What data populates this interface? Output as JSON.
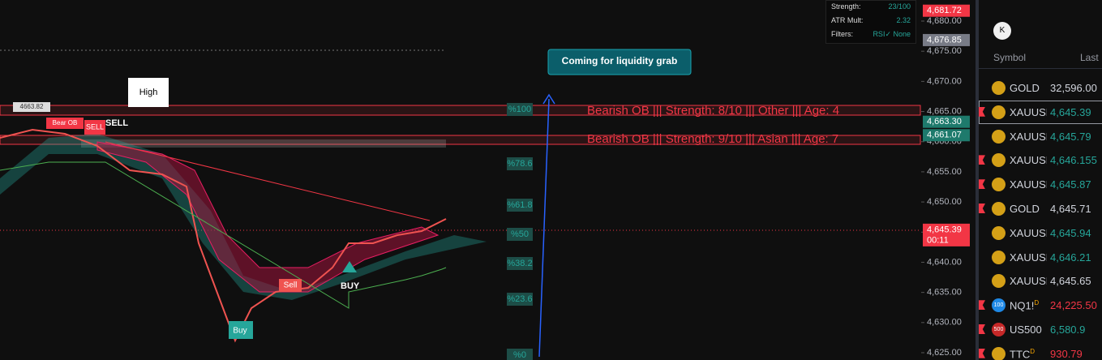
{
  "indicator_panel": {
    "rows": [
      [
        "Strength:",
        "23/100"
      ],
      [
        "ATR Mult:",
        "2.32"
      ],
      [
        "Filters:",
        "RSI✓ None"
      ]
    ]
  },
  "price_axis": {
    "ylim": [
      4625,
      4680
    ],
    "yticks": [
      {
        "value": 4680,
        "label": "4,680.00"
      },
      {
        "value": 4675,
        "label": "4,675.00"
      },
      {
        "value": 4670,
        "label": "4,670.00"
      },
      {
        "value": 4665,
        "label": "4,665.00"
      },
      {
        "value": 4660,
        "label": "4,660.00"
      },
      {
        "value": 4655,
        "label": "4,655.00"
      },
      {
        "value": 4650,
        "label": "4,650.00"
      },
      {
        "value": 4645,
        "label": "4,645.00"
      },
      {
        "value": 4640,
        "label": "4,640.00"
      },
      {
        "value": 4635,
        "label": "4,635.00"
      },
      {
        "value": 4630,
        "label": "4,630.00"
      },
      {
        "value": 4625,
        "label": "4,625.00"
      }
    ],
    "tags": [
      {
        "value": 4681.72,
        "label": "4,681.72",
        "color": "#f23645"
      },
      {
        "value": 4676.85,
        "label": "4,676.85",
        "color": "#787b86"
      },
      {
        "value": 4663.3,
        "label": "4,663.30",
        "color": "#1e7a6c"
      },
      {
        "value": 4661.07,
        "label": "4,661.07",
        "color": "#1e7a6c"
      },
      {
        "value": 4645.39,
        "label": "4,645.39",
        "color": "#f23645",
        "timer": "00:11"
      }
    ]
  },
  "chart_labels": {
    "level": "4663.82",
    "bear_ob": "Bear OB",
    "sell_top": "SELL",
    "sell_small": "SELL",
    "high": "High",
    "note": "Coming for liquidity grab",
    "ob1": "Bearish OB ||| Strength: 8/10 ||| Other ||| Age: 4",
    "ob2": "Bearish OB ||| Strength: 9/10 ||| Asian ||| Age: 7",
    "sell_mid": "Sell",
    "buy_mid": "BUY",
    "buy_low": "Buy",
    "fib": [
      "%100",
      "%78.6",
      "%61.8",
      "%50",
      "%38.2",
      "%23.6",
      "%0"
    ]
  },
  "watchlist": {
    "button": "K",
    "header": [
      "Symbol",
      "Last"
    ],
    "rows": [
      {
        "icon": "",
        "symbol": "GOLD",
        "last": "32,596.00",
        "color": "#d1d4dc",
        "flag": false
      },
      {
        "icon": "",
        "symbol": "XAUUSD",
        "last": "4,645.39",
        "color": "#26a69a",
        "flag": true
      },
      {
        "icon": "",
        "symbol": "XAUUSD",
        "last": "4,645.79",
        "color": "#26a69a",
        "flag": false
      },
      {
        "icon": "",
        "symbol": "XAUUSD",
        "last": "4,646.155",
        "color": "#26a69a",
        "flag": true
      },
      {
        "icon": "",
        "symbol": "XAUUSD",
        "last": "4,645.87",
        "color": "#26a69a",
        "flag": true
      },
      {
        "icon": "",
        "symbol": "GOLD",
        "last": "4,645.71",
        "color": "#d1d4dc",
        "flag": true
      },
      {
        "icon": "",
        "symbol": "XAUUSD",
        "last": "4,645.94",
        "color": "#26a69a",
        "flag": false
      },
      {
        "icon": "",
        "symbol": "XAUUSD",
        "last": "4,646.21",
        "color": "#26a69a",
        "flag": false
      },
      {
        "icon": "",
        "symbol": "XAUUSD",
        "last": "4,645.65",
        "color": "#d1d4dc",
        "flag": false
      },
      {
        "icon": "100",
        "symbol": "NQ1!",
        "badge": "D",
        "last": "24,225.50",
        "color": "#f23645",
        "flag": true
      },
      {
        "icon": "500",
        "symbol": "US500",
        "last": "6,580.9",
        "color": "#26a69a",
        "flag": true
      },
      {
        "icon": "",
        "symbol": "TTC",
        "badge": "D",
        "last": "930.79",
        "color": "#f23645",
        "flag": true
      }
    ]
  }
}
